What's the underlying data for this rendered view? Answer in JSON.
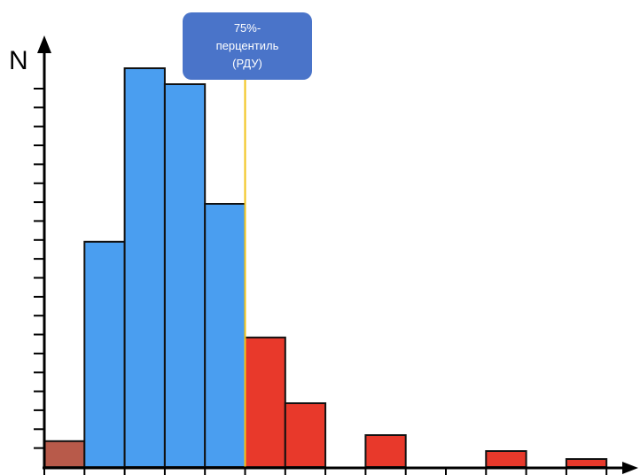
{
  "chart_data": {
    "type": "bar",
    "ylabel": "N",
    "xlabel": "",
    "ylim": [
      0,
      20
    ],
    "tick_count": 20,
    "bins": [
      {
        "value": 1.3,
        "color": "#b85a4a",
        "group": "lower"
      },
      {
        "value": 11.3,
        "color": "#4a9ef0",
        "group": "main"
      },
      {
        "value": 20.0,
        "color": "#4a9ef0",
        "group": "main"
      },
      {
        "value": 19.2,
        "color": "#4a9ef0",
        "group": "main"
      },
      {
        "value": 13.2,
        "color": "#4a9ef0",
        "group": "main"
      },
      {
        "value": 6.5,
        "color": "#e8392b",
        "group": "upper"
      },
      {
        "value": 3.2,
        "color": "#e8392b",
        "group": "upper"
      },
      {
        "value": 0,
        "color": "#e8392b",
        "group": "upper"
      },
      {
        "value": 1.6,
        "color": "#e8392b",
        "group": "upper"
      },
      {
        "value": 0,
        "color": "#e8392b",
        "group": "upper"
      },
      {
        "value": 0,
        "color": "#e8392b",
        "group": "upper"
      },
      {
        "value": 0.8,
        "color": "#e8392b",
        "group": "upper"
      },
      {
        "value": 0,
        "color": "#e8392b",
        "group": "upper"
      },
      {
        "value": 0.4,
        "color": "#e8392b",
        "group": "upper"
      }
    ],
    "percentile_line_after_bin": 5,
    "percentile_color": "#f2c318",
    "annotation": {
      "line1": "75%-",
      "line2": "перцентиль",
      "line3": "(РДУ)"
    }
  }
}
